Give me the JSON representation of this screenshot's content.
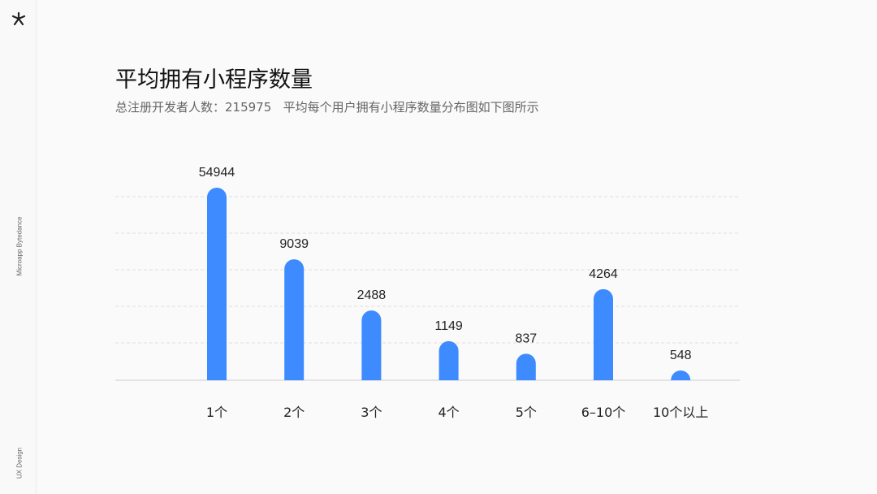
{
  "sidebar": {
    "brand_top": "Microapp Bytedance",
    "brand_bottom": "UX Design",
    "logo_icon": "asterisk-logo-icon"
  },
  "header": {
    "title": "平均拥有小程序数量",
    "subtitle_label": "总注册开发者人数：215975",
    "subtitle_desc": "平均每个用户拥有小程序数量分布图如下图所示"
  },
  "colors": {
    "bar": "#3d8bff",
    "grid": "#dddddd",
    "axis": "#cccccc"
  },
  "chart_data": {
    "type": "bar",
    "title": "平均拥有小程序数量",
    "categories": [
      "1个",
      "2个",
      "3个",
      "4个",
      "5个",
      "6–10个",
      "10个以上"
    ],
    "values": [
      54944,
      9039,
      2488,
      1149,
      837,
      4264,
      548
    ],
    "xlabel": "",
    "ylabel": "",
    "y_scale": "log",
    "grid": true,
    "legend": "none"
  }
}
